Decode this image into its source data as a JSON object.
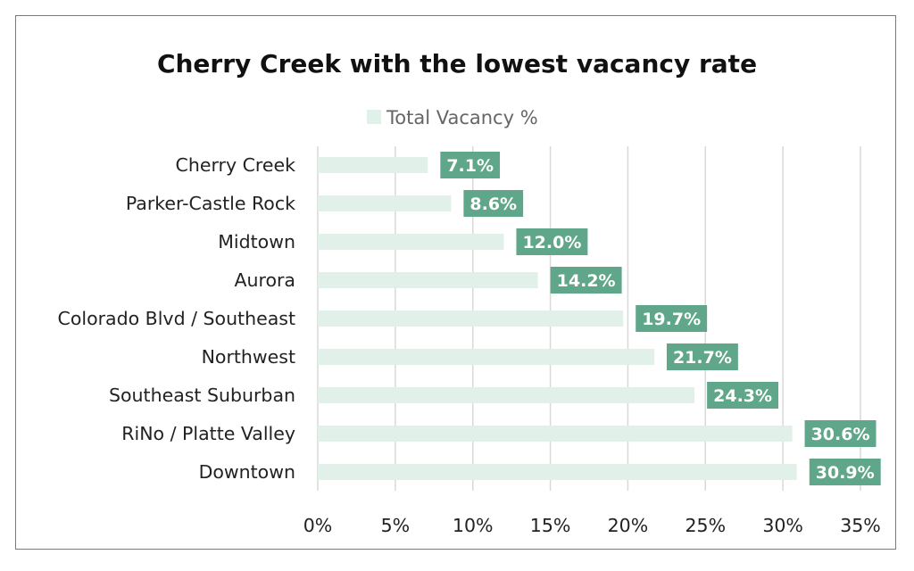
{
  "chart_data": {
    "type": "bar",
    "orientation": "horizontal",
    "title": "Cherry Creek with the lowest vacancy rate",
    "xlabel": "",
    "ylabel": "",
    "legend_position": "top",
    "grid": true,
    "xlim": [
      0,
      35
    ],
    "x_ticks": [
      "0%",
      "5%",
      "10%",
      "15%",
      "20%",
      "25%",
      "30%",
      "35%"
    ],
    "x_tick_values": [
      0,
      5,
      10,
      15,
      20,
      25,
      30,
      35
    ],
    "categories": [
      "Cherry Creek",
      "Parker-Castle Rock",
      "Midtown",
      "Aurora",
      "Colorado Blvd / Southeast",
      "Northwest",
      "Southeast Suburban",
      "RiNo / Platte Valley",
      "Downtown"
    ],
    "series": [
      {
        "name": "Total Vacancy %",
        "values": [
          7.1,
          8.6,
          12.0,
          14.2,
          19.7,
          21.7,
          24.3,
          30.6,
          30.9
        ],
        "data_labels": [
          "7.1%",
          "8.6%",
          "12.0%",
          "14.2%",
          "19.7%",
          "21.7%",
          "24.3%",
          "30.6%",
          "30.9%"
        ]
      }
    ],
    "colors": {
      "bar": "#e2f0ea",
      "data_label_bg": "#5fa68a",
      "data_label_text": "#ffffff",
      "gridline": "#d9d9d9",
      "border": "#7a7a7a"
    }
  }
}
